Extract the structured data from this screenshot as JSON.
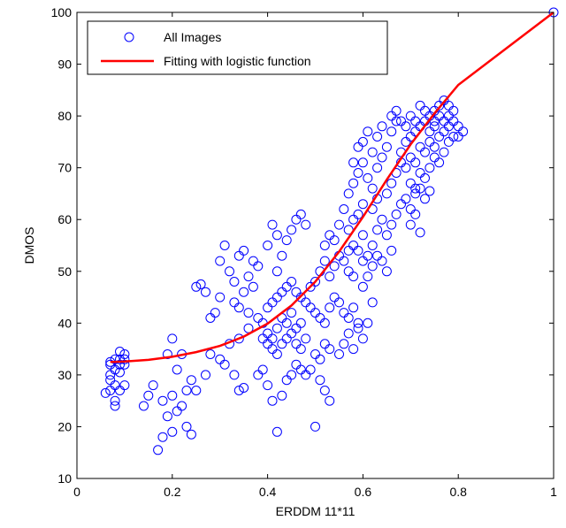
{
  "chart_data": {
    "type": "scatter",
    "xlabel": "ERDDM 11*11",
    "ylabel": "DMOS",
    "xlim": [
      0,
      1
    ],
    "ylim": [
      10,
      100
    ],
    "x_ticks": [
      0,
      0.2,
      0.4,
      0.6,
      0.8,
      1
    ],
    "x_tick_labels": [
      "0",
      "0.2",
      "0.4",
      "0.6",
      "0.8",
      "1"
    ],
    "y_ticks": [
      10,
      20,
      30,
      40,
      50,
      60,
      70,
      80,
      90,
      100
    ],
    "y_tick_labels": [
      "10",
      "20",
      "30",
      "40",
      "50",
      "60",
      "70",
      "80",
      "90",
      "100"
    ],
    "grid": false,
    "legend_position": "top-left",
    "series": [
      {
        "name": "All Images",
        "type": "scatter",
        "marker": "circle-open",
        "color": "#0000ff",
        "points": [
          [
            0.07,
            32
          ],
          [
            0.08,
            31
          ],
          [
            0.07,
            29
          ],
          [
            0.08,
            28
          ],
          [
            0.09,
            27
          ],
          [
            0.1,
            34
          ],
          [
            0.09,
            33
          ],
          [
            0.08,
            25
          ],
          [
            0.07,
            27
          ],
          [
            0.1,
            28
          ],
          [
            0.07,
            32.5
          ],
          [
            0.08,
            33
          ],
          [
            0.09,
            34.5
          ],
          [
            0.1,
            32
          ],
          [
            0.06,
            26.5
          ],
          [
            0.08,
            24
          ],
          [
            0.09,
            30.5
          ],
          [
            0.07,
            30
          ],
          [
            0.1,
            33
          ],
          [
            0.09,
            32
          ],
          [
            0.17,
            15.5
          ],
          [
            0.18,
            18
          ],
          [
            0.2,
            19
          ],
          [
            0.21,
            23
          ],
          [
            0.19,
            22
          ],
          [
            0.16,
            28
          ],
          [
            0.18,
            25
          ],
          [
            0.2,
            26
          ],
          [
            0.22,
            24
          ],
          [
            0.23,
            20
          ],
          [
            0.2,
            37
          ],
          [
            0.22,
            34
          ],
          [
            0.24,
            29
          ],
          [
            0.15,
            26
          ],
          [
            0.14,
            24
          ],
          [
            0.19,
            34
          ],
          [
            0.21,
            31
          ],
          [
            0.24,
            18.5
          ],
          [
            0.23,
            27
          ],
          [
            0.25,
            27
          ],
          [
            0.25,
            47
          ],
          [
            0.26,
            47.5
          ],
          [
            0.27,
            46
          ],
          [
            0.28,
            41
          ],
          [
            0.29,
            42
          ],
          [
            0.3,
            45
          ],
          [
            0.3,
            52
          ],
          [
            0.31,
            55
          ],
          [
            0.32,
            50
          ],
          [
            0.33,
            48
          ],
          [
            0.3,
            33
          ],
          [
            0.31,
            32
          ],
          [
            0.33,
            30
          ],
          [
            0.34,
            27
          ],
          [
            0.35,
            27.5
          ],
          [
            0.32,
            36
          ],
          [
            0.34,
            37
          ],
          [
            0.36,
            39
          ],
          [
            0.28,
            34
          ],
          [
            0.27,
            30
          ],
          [
            0.33,
            44
          ],
          [
            0.34,
            43
          ],
          [
            0.35,
            46
          ],
          [
            0.36,
            49
          ],
          [
            0.37,
            52
          ],
          [
            0.38,
            51
          ],
          [
            0.35,
            54
          ],
          [
            0.37,
            47
          ],
          [
            0.36,
            42
          ],
          [
            0.34,
            53
          ],
          [
            0.38,
            41
          ],
          [
            0.39,
            40
          ],
          [
            0.4,
            38
          ],
          [
            0.41,
            37
          ],
          [
            0.42,
            39
          ],
          [
            0.43,
            41
          ],
          [
            0.44,
            40
          ],
          [
            0.45,
            42
          ],
          [
            0.46,
            39
          ],
          [
            0.47,
            40
          ],
          [
            0.39,
            37
          ],
          [
            0.4,
            36
          ],
          [
            0.41,
            35
          ],
          [
            0.42,
            34
          ],
          [
            0.43,
            36
          ],
          [
            0.44,
            37
          ],
          [
            0.45,
            38
          ],
          [
            0.46,
            36
          ],
          [
            0.47,
            35
          ],
          [
            0.48,
            37
          ],
          [
            0.4,
            43
          ],
          [
            0.41,
            44
          ],
          [
            0.42,
            45
          ],
          [
            0.43,
            46
          ],
          [
            0.44,
            47
          ],
          [
            0.45,
            48
          ],
          [
            0.46,
            46
          ],
          [
            0.47,
            45
          ],
          [
            0.48,
            44
          ],
          [
            0.49,
            43
          ],
          [
            0.4,
            55
          ],
          [
            0.42,
            57
          ],
          [
            0.41,
            59
          ],
          [
            0.43,
            53
          ],
          [
            0.44,
            56
          ],
          [
            0.45,
            58
          ],
          [
            0.46,
            60
          ],
          [
            0.47,
            61
          ],
          [
            0.48,
            59
          ],
          [
            0.42,
            50
          ],
          [
            0.38,
            30
          ],
          [
            0.39,
            31
          ],
          [
            0.4,
            28
          ],
          [
            0.41,
            25
          ],
          [
            0.42,
            19
          ],
          [
            0.43,
            26
          ],
          [
            0.44,
            29
          ],
          [
            0.45,
            30
          ],
          [
            0.46,
            32
          ],
          [
            0.47,
            31
          ],
          [
            0.48,
            30
          ],
          [
            0.49,
            31
          ],
          [
            0.5,
            20
          ],
          [
            0.51,
            29
          ],
          [
            0.52,
            27
          ],
          [
            0.53,
            25
          ],
          [
            0.5,
            34
          ],
          [
            0.51,
            33
          ],
          [
            0.52,
            36
          ],
          [
            0.53,
            35
          ],
          [
            0.49,
            47
          ],
          [
            0.5,
            48
          ],
          [
            0.51,
            50
          ],
          [
            0.52,
            52
          ],
          [
            0.53,
            49
          ],
          [
            0.54,
            51
          ],
          [
            0.55,
            53
          ],
          [
            0.56,
            52
          ],
          [
            0.57,
            50
          ],
          [
            0.58,
            49
          ],
          [
            0.5,
            42
          ],
          [
            0.51,
            41
          ],
          [
            0.52,
            40
          ],
          [
            0.53,
            43
          ],
          [
            0.54,
            45
          ],
          [
            0.55,
            44
          ],
          [
            0.56,
            42
          ],
          [
            0.57,
            41
          ],
          [
            0.58,
            43
          ],
          [
            0.59,
            40
          ],
          [
            0.52,
            55
          ],
          [
            0.53,
            57
          ],
          [
            0.54,
            56
          ],
          [
            0.55,
            59
          ],
          [
            0.56,
            62
          ],
          [
            0.57,
            58
          ],
          [
            0.58,
            60
          ],
          [
            0.59,
            61
          ],
          [
            0.6,
            63
          ],
          [
            0.6,
            57
          ],
          [
            0.55,
            34
          ],
          [
            0.56,
            36
          ],
          [
            0.57,
            38
          ],
          [
            0.58,
            35
          ],
          [
            0.59,
            39
          ],
          [
            0.6,
            37
          ],
          [
            0.61,
            40
          ],
          [
            0.62,
            44
          ],
          [
            0.6,
            47
          ],
          [
            0.61,
            49
          ],
          [
            0.57,
            65
          ],
          [
            0.58,
            67
          ],
          [
            0.59,
            69
          ],
          [
            0.6,
            71
          ],
          [
            0.61,
            68
          ],
          [
            0.62,
            66
          ],
          [
            0.63,
            70
          ],
          [
            0.64,
            72
          ],
          [
            0.62,
            62
          ],
          [
            0.63,
            64
          ],
          [
            0.58,
            71
          ],
          [
            0.59,
            74
          ],
          [
            0.6,
            75
          ],
          [
            0.61,
            77
          ],
          [
            0.62,
            73
          ],
          [
            0.63,
            76
          ],
          [
            0.64,
            78
          ],
          [
            0.65,
            74
          ],
          [
            0.66,
            77
          ],
          [
            0.67,
            79
          ],
          [
            0.62,
            55
          ],
          [
            0.63,
            58
          ],
          [
            0.64,
            60
          ],
          [
            0.65,
            57
          ],
          [
            0.66,
            59
          ],
          [
            0.67,
            61
          ],
          [
            0.65,
            65
          ],
          [
            0.66,
            67
          ],
          [
            0.67,
            69
          ],
          [
            0.68,
            71
          ],
          [
            0.64,
            52
          ],
          [
            0.65,
            50
          ],
          [
            0.66,
            54
          ],
          [
            0.63,
            53
          ],
          [
            0.62,
            51
          ],
          [
            0.61,
            53
          ],
          [
            0.6,
            52
          ],
          [
            0.59,
            54
          ],
          [
            0.58,
            55
          ],
          [
            0.57,
            54
          ],
          [
            0.68,
            73
          ],
          [
            0.69,
            75
          ],
          [
            0.7,
            76
          ],
          [
            0.71,
            77
          ],
          [
            0.72,
            78
          ],
          [
            0.73,
            79
          ],
          [
            0.74,
            80
          ],
          [
            0.75,
            81
          ],
          [
            0.76,
            80
          ],
          [
            0.77,
            79
          ],
          [
            0.69,
            70
          ],
          [
            0.7,
            72
          ],
          [
            0.71,
            71
          ],
          [
            0.72,
            74
          ],
          [
            0.73,
            73
          ],
          [
            0.74,
            75
          ],
          [
            0.75,
            74
          ],
          [
            0.76,
            76
          ],
          [
            0.77,
            77
          ],
          [
            0.78,
            78
          ],
          [
            0.7,
            67
          ],
          [
            0.71,
            66
          ],
          [
            0.72,
            69
          ],
          [
            0.73,
            68
          ],
          [
            0.74,
            70
          ],
          [
            0.75,
            72
          ],
          [
            0.76,
            71
          ],
          [
            0.77,
            73
          ],
          [
            0.78,
            75
          ],
          [
            0.79,
            76
          ],
          [
            0.66,
            80
          ],
          [
            0.67,
            81
          ],
          [
            0.68,
            79
          ],
          [
            0.69,
            78
          ],
          [
            0.7,
            80
          ],
          [
            0.71,
            79
          ],
          [
            0.72,
            82
          ],
          [
            0.73,
            81
          ],
          [
            0.74,
            77
          ],
          [
            0.75,
            78
          ],
          [
            0.68,
            63
          ],
          [
            0.69,
            64
          ],
          [
            0.7,
            62
          ],
          [
            0.71,
            65
          ],
          [
            0.72,
            66
          ],
          [
            0.73,
            64
          ],
          [
            0.74,
            65.5
          ],
          [
            0.7,
            59
          ],
          [
            0.72,
            57.5
          ],
          [
            0.71,
            61
          ],
          [
            0.78,
            80
          ],
          [
            0.79,
            79
          ],
          [
            0.8,
            78
          ],
          [
            0.81,
            77
          ],
          [
            0.8,
            76
          ],
          [
            0.79,
            81
          ],
          [
            0.78,
            82
          ],
          [
            0.77,
            83
          ],
          [
            0.76,
            82
          ],
          [
            0.75,
            79
          ],
          [
            1.0,
            100
          ]
        ]
      },
      {
        "name": "Fitting with logistic function",
        "type": "line",
        "color": "#ff0000",
        "points": [
          [
            0.07,
            32.5
          ],
          [
            0.1,
            32.6
          ],
          [
            0.15,
            32.9
          ],
          [
            0.2,
            33.5
          ],
          [
            0.25,
            34.4
          ],
          [
            0.3,
            35.6
          ],
          [
            0.35,
            37.4
          ],
          [
            0.4,
            39.9
          ],
          [
            0.45,
            43.4
          ],
          [
            0.5,
            48.0
          ],
          [
            0.55,
            53.8
          ],
          [
            0.6,
            60.5
          ],
          [
            0.65,
            67.7
          ],
          [
            0.7,
            74.5
          ],
          [
            0.75,
            80.5
          ],
          [
            0.8,
            86.0
          ],
          [
            0.9,
            93.0
          ],
          [
            1.0,
            100
          ]
        ]
      }
    ]
  }
}
